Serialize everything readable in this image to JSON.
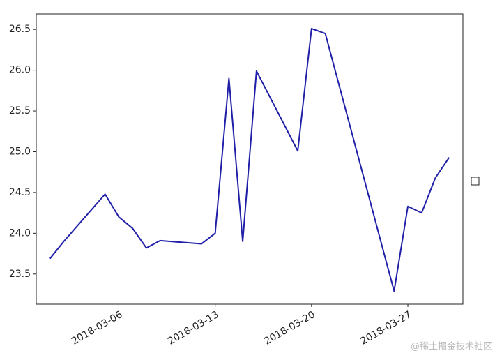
{
  "chart_data": {
    "type": "line",
    "x": [
      "2018-03-01",
      "2018-03-02",
      "2018-03-05",
      "2018-03-06",
      "2018-03-07",
      "2018-03-08",
      "2018-03-09",
      "2018-03-12",
      "2018-03-13",
      "2018-03-14",
      "2018-03-15",
      "2018-03-16",
      "2018-03-19",
      "2018-03-20",
      "2018-03-21",
      "2018-03-26",
      "2018-03-27",
      "2018-03-28",
      "2018-03-29",
      "2018-03-30"
    ],
    "series": [
      {
        "color": "#1f1fa8",
        "values": [
          23.69,
          23.9,
          24.48,
          24.2,
          24.06,
          23.82,
          23.91,
          23.87,
          24.0,
          25.9,
          23.9,
          25.99,
          25.01,
          26.51,
          26.45,
          23.29,
          24.33,
          24.25,
          24.68,
          24.93
        ]
      }
    ],
    "xlim": [
      "2018-02-28",
      "2018-03-31"
    ],
    "xticks": [
      "2018-03-06",
      "2018-03-13",
      "2018-03-20",
      "2018-03-27"
    ],
    "ylim": [
      23.13,
      26.69
    ],
    "yticks": [
      {
        "value": 23.5,
        "label": "23.5"
      },
      {
        "value": 24,
        "label": "24.0"
      },
      {
        "value": 24.5,
        "label": "24.5"
      },
      {
        "value": 25,
        "label": "25.0"
      },
      {
        "value": 25.5,
        "label": "25.5"
      },
      {
        "value": 26,
        "label": "26.0"
      },
      {
        "value": 26.5,
        "label": "26.5"
      }
    ],
    "watermark": "@稀土掘金技术社区"
  }
}
